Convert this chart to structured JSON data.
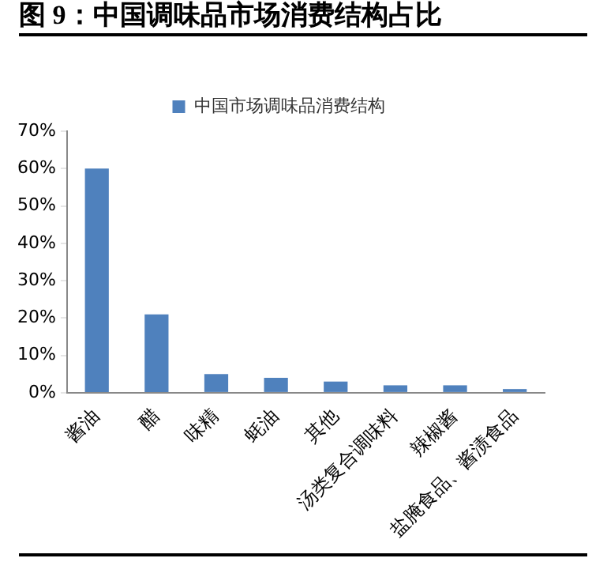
{
  "chart_data": {
    "type": "bar",
    "title": "图 9：中国调味品市场消费结构占比",
    "categories": [
      "酱油",
      "醋",
      "味精",
      "蚝油",
      "其他",
      "汤类复合调味料",
      "辣椒酱",
      "盐腌食品、酱渍食品"
    ],
    "series": [
      {
        "name": "中国市场调味品消费结构",
        "color": "#4f81bd",
        "values": [
          60,
          21,
          5,
          4,
          3,
          2,
          2,
          1
        ]
      }
    ],
    "ylim": [
      0,
      70
    ],
    "yticks": [
      {
        "value": 0,
        "label": "0%"
      },
      {
        "value": 10,
        "label": "10%"
      },
      {
        "value": 20,
        "label": "20%"
      },
      {
        "value": 30,
        "label": "30%"
      },
      {
        "value": 40,
        "label": "40%"
      },
      {
        "value": 50,
        "label": "50%"
      },
      {
        "value": 60,
        "label": "60%"
      },
      {
        "value": 70,
        "label": "70%"
      }
    ],
    "grid": false,
    "legend": "top"
  }
}
